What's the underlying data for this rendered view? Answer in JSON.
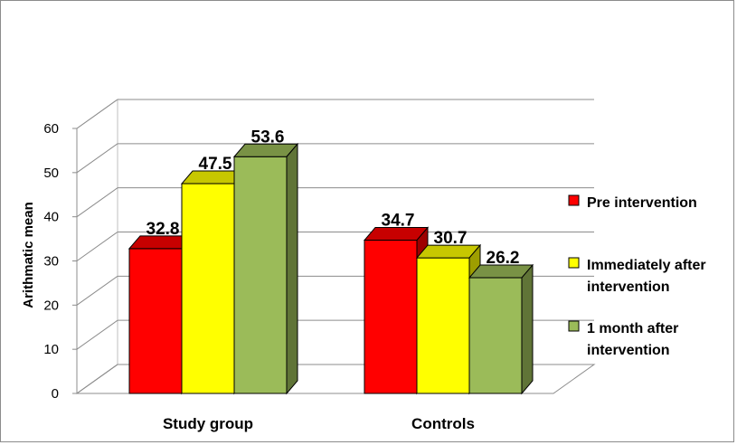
{
  "chart_data": {
    "type": "bar",
    "categories": [
      "Study group",
      "Controls"
    ],
    "series": [
      {
        "name": "Pre intervention",
        "values": [
          32.8,
          34.7
        ],
        "color": "#ff0000",
        "legend_lines": [
          "Pre intervention"
        ]
      },
      {
        "name": "Immediately after intervention",
        "values": [
          47.5,
          30.7
        ],
        "color": "#ffff00",
        "legend_lines": [
          "Immediately after",
          "intervention"
        ]
      },
      {
        "name": "1 month  after intervention",
        "values": [
          53.6,
          26.2
        ],
        "color": "#9bbb59",
        "legend_lines": [
          "1 month  after",
          "intervention"
        ]
      }
    ],
    "data_labels": [
      [
        "32.8",
        "34.7"
      ],
      [
        "47.5",
        "30.7"
      ],
      [
        "53.6",
        "26.2"
      ]
    ],
    "ylabel": "Arithmatic mean",
    "xlabel": "",
    "ylim": [
      0,
      60
    ],
    "yticks": [
      0,
      10,
      20,
      30,
      40,
      50,
      60
    ],
    "grid": true,
    "legend": "right",
    "style": "3d-clustered-column"
  }
}
